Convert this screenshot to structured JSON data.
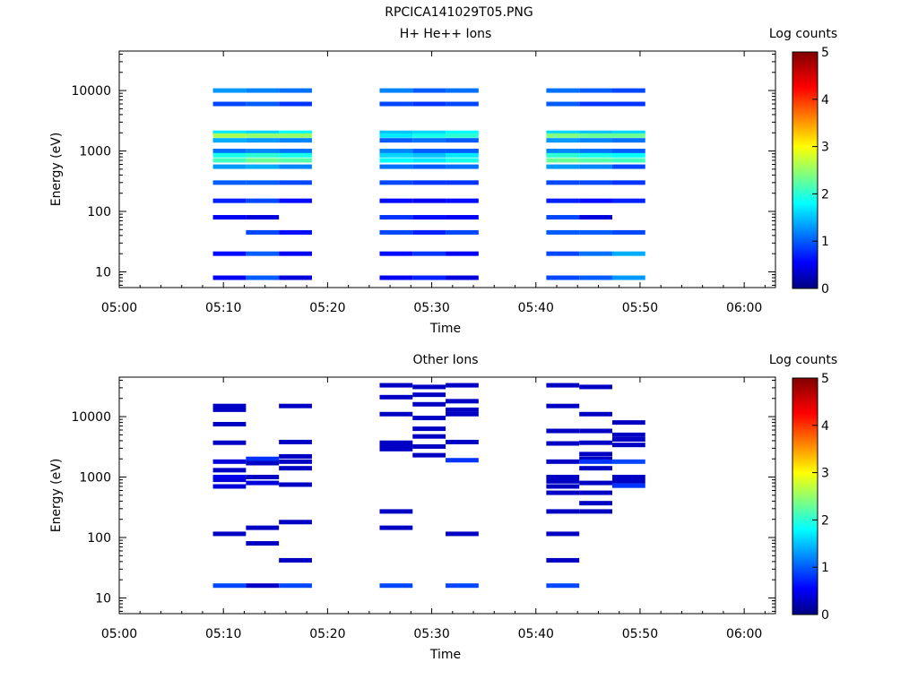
{
  "title": "RPCICA141029T05.PNG",
  "colors": {
    "colormap": [
      "#000080",
      "#0000ff",
      "#00ffff",
      "#ffff00",
      "#ff0000",
      "#800000"
    ]
  },
  "chart_data": [
    {
      "type": "heatmap",
      "title": "H+ He++ Ions",
      "xlabel": "Time",
      "ylabel": "Energy (eV)",
      "y_scale": "log",
      "ylim": [
        5.5,
        45000
      ],
      "x_range": [
        "05:00",
        "06:03"
      ],
      "x_ticks": [
        "05:00",
        "05:10",
        "05:20",
        "05:30",
        "05:40",
        "05:50",
        "06:00"
      ],
      "y_ticks": [
        "10",
        "100",
        "1000",
        "10000"
      ],
      "colorbar": {
        "label": "Log counts",
        "range": [
          0,
          5
        ],
        "ticks": [
          "0",
          "1",
          "2",
          "3",
          "4",
          "5"
        ]
      },
      "columns": [
        {
          "start": "05:09:00",
          "end": "05:12:10",
          "cells": [
            [
              10000,
              1.3
            ],
            [
              6000,
              0.9
            ],
            [
              2000,
              1.7
            ],
            [
              1800,
              2.6
            ],
            [
              1500,
              1.4
            ],
            [
              1000,
              1.1
            ],
            [
              850,
              1.9
            ],
            [
              700,
              2.1
            ],
            [
              550,
              1.3
            ],
            [
              300,
              1.0
            ],
            [
              150,
              0.7
            ],
            [
              80,
              0.5
            ],
            [
              45,
              null
            ],
            [
              20,
              0.6
            ],
            [
              8,
              0.5
            ]
          ]
        },
        {
          "start": "05:12:10",
          "end": "05:15:20",
          "cells": [
            [
              10000,
              1.2
            ],
            [
              6000,
              1.0
            ],
            [
              2000,
              1.6
            ],
            [
              1800,
              2.5
            ],
            [
              1500,
              1.3
            ],
            [
              1000,
              1.2
            ],
            [
              850,
              2.0
            ],
            [
              700,
              2.3
            ],
            [
              550,
              1.4
            ],
            [
              300,
              1.0
            ],
            [
              150,
              0.9
            ],
            [
              80,
              0.4
            ],
            [
              45,
              0.9
            ],
            [
              20,
              1.0
            ],
            [
              8,
              1.0
            ]
          ]
        },
        {
          "start": "05:15:20",
          "end": "05:18:30",
          "cells": [
            [
              10000,
              1.1
            ],
            [
              6000,
              0.8
            ],
            [
              2000,
              1.8
            ],
            [
              1800,
              2.5
            ],
            [
              1500,
              1.2
            ],
            [
              1000,
              1.1
            ],
            [
              850,
              1.9
            ],
            [
              700,
              2.2
            ],
            [
              550,
              1.2
            ],
            [
              300,
              0.9
            ],
            [
              150,
              0.6
            ],
            [
              80,
              null
            ],
            [
              45,
              0.6
            ],
            [
              20,
              0.5
            ],
            [
              8,
              0.4
            ]
          ]
        },
        {
          "start": "05:25:00",
          "end": "05:28:10",
          "cells": [
            [
              10000,
              1.2
            ],
            [
              6000,
              0.9
            ],
            [
              2000,
              1.5
            ],
            [
              1800,
              1.7
            ],
            [
              1500,
              1.0
            ],
            [
              1000,
              1.2
            ],
            [
              850,
              1.6
            ],
            [
              700,
              1.8
            ],
            [
              550,
              1.1
            ],
            [
              300,
              0.9
            ],
            [
              150,
              0.6
            ],
            [
              80,
              0.8
            ],
            [
              45,
              0.9
            ],
            [
              20,
              0.6
            ],
            [
              8,
              0.5
            ]
          ]
        },
        {
          "start": "05:28:10",
          "end": "05:31:20",
          "cells": [
            [
              10000,
              1.0
            ],
            [
              6000,
              0.8
            ],
            [
              2000,
              1.6
            ],
            [
              1800,
              1.9
            ],
            [
              1500,
              1.1
            ],
            [
              1000,
              1.0
            ],
            [
              850,
              1.5
            ],
            [
              700,
              1.7
            ],
            [
              550,
              1.0
            ],
            [
              300,
              0.8
            ],
            [
              150,
              0.5
            ],
            [
              80,
              0.6
            ],
            [
              45,
              0.7
            ],
            [
              20,
              0.8
            ],
            [
              8,
              0.7
            ]
          ]
        },
        {
          "start": "05:31:20",
          "end": "05:34:30",
          "cells": [
            [
              10000,
              1.1
            ],
            [
              6000,
              0.9
            ],
            [
              2000,
              1.8
            ],
            [
              1800,
              2.0
            ],
            [
              1500,
              1.0
            ],
            [
              1000,
              1.0
            ],
            [
              850,
              1.7
            ],
            [
              700,
              1.9
            ],
            [
              550,
              1.1
            ],
            [
              300,
              0.8
            ],
            [
              150,
              0.6
            ],
            [
              80,
              0.5
            ],
            [
              45,
              0.9
            ],
            [
              20,
              0.5
            ],
            [
              8,
              0.4
            ]
          ]
        },
        {
          "start": "05:41:00",
          "end": "05:44:10",
          "cells": [
            [
              10000,
              1.1
            ],
            [
              6000,
              1.0
            ],
            [
              2000,
              1.6
            ],
            [
              1800,
              2.4
            ],
            [
              1500,
              1.3
            ],
            [
              1000,
              1.2
            ],
            [
              850,
              2.0
            ],
            [
              700,
              2.3
            ],
            [
              550,
              1.3
            ],
            [
              300,
              0.9
            ],
            [
              150,
              0.7
            ],
            [
              80,
              0.9
            ],
            [
              45,
              1.0
            ],
            [
              20,
              0.9
            ],
            [
              8,
              0.9
            ]
          ]
        },
        {
          "start": "05:44:10",
          "end": "05:47:20",
          "cells": [
            [
              10000,
              1.0
            ],
            [
              6000,
              0.8
            ],
            [
              2000,
              1.5
            ],
            [
              1800,
              2.3
            ],
            [
              1500,
              1.2
            ],
            [
              1000,
              1.1
            ],
            [
              850,
              1.9
            ],
            [
              700,
              2.2
            ],
            [
              550,
              1.2
            ],
            [
              300,
              0.9
            ],
            [
              150,
              0.6
            ],
            [
              80,
              0.4
            ],
            [
              45,
              1.0
            ],
            [
              20,
              1.1
            ],
            [
              8,
              1.0
            ]
          ]
        },
        {
          "start": "05:47:20",
          "end": "05:50:30",
          "cells": [
            [
              10000,
              0.9
            ],
            [
              6000,
              0.8
            ],
            [
              2000,
              1.6
            ],
            [
              1800,
              2.3
            ],
            [
              1500,
              1.1
            ],
            [
              1000,
              1.0
            ],
            [
              850,
              1.8
            ],
            [
              700,
              2.1
            ],
            [
              550,
              0.9
            ],
            [
              300,
              0.8
            ],
            [
              150,
              0.7
            ],
            [
              80,
              null
            ],
            [
              45,
              0.9
            ],
            [
              20,
              1.4
            ],
            [
              8,
              1.3
            ]
          ]
        }
      ]
    },
    {
      "type": "heatmap",
      "title": "Other Ions",
      "xlabel": "Time",
      "ylabel": "Energy (eV)",
      "y_scale": "log",
      "ylim": [
        5.5,
        45000
      ],
      "x_range": [
        "05:00",
        "06:03"
      ],
      "x_ticks": [
        "05:00",
        "05:10",
        "05:20",
        "05:30",
        "05:40",
        "05:50",
        "06:00"
      ],
      "y_ticks": [
        "10",
        "100",
        "1000",
        "10000"
      ],
      "colorbar": {
        "label": "Log counts",
        "range": [
          0,
          5
        ],
        "ticks": [
          "0",
          "1",
          "2",
          "3",
          "4",
          "5"
        ]
      },
      "columns": [
        {
          "start": "05:09:00",
          "end": "05:12:10",
          "cells": [
            [
              15000,
              0.3
            ],
            [
              13000,
              0.3
            ],
            [
              7500,
              0.3
            ],
            [
              3700,
              0.3
            ],
            [
              1800,
              0.4
            ],
            [
              1300,
              0.3
            ],
            [
              1000,
              0.5
            ],
            [
              900,
              0.4
            ],
            [
              700,
              0.4
            ],
            [
              115,
              0.3
            ],
            [
              16,
              0.9
            ]
          ]
        },
        {
          "start": "05:12:10",
          "end": "05:15:20",
          "cells": [
            [
              2000,
              0.8
            ],
            [
              1700,
              0.3
            ],
            [
              1000,
              0.3
            ],
            [
              800,
              0.4
            ],
            [
              145,
              0.3
            ],
            [
              80,
              0.3
            ],
            [
              16,
              0.3
            ]
          ]
        },
        {
          "start": "05:15:20",
          "end": "05:18:30",
          "cells": [
            [
              15000,
              0.3
            ],
            [
              3800,
              0.3
            ],
            [
              2200,
              0.3
            ],
            [
              1800,
              0.3
            ],
            [
              1400,
              0.3
            ],
            [
              750,
              0.3
            ],
            [
              180,
              0.3
            ],
            [
              42,
              0.3
            ],
            [
              16,
              0.9
            ]
          ]
        },
        {
          "start": "05:25:00",
          "end": "05:28:10",
          "cells": [
            [
              33000,
              0.3
            ],
            [
              21000,
              0.3
            ],
            [
              11000,
              0.3
            ],
            [
              3700,
              0.3
            ],
            [
              3300,
              0.3
            ],
            [
              2900,
              0.3
            ],
            [
              270,
              0.3
            ],
            [
              145,
              0.3
            ],
            [
              16,
              0.9
            ]
          ]
        },
        {
          "start": "05:28:10",
          "end": "05:31:20",
          "cells": [
            [
              31000,
              0.3
            ],
            [
              23000,
              0.3
            ],
            [
              16000,
              0.3
            ],
            [
              9500,
              0.3
            ],
            [
              6300,
              0.3
            ],
            [
              4700,
              0.3
            ],
            [
              3200,
              0.3
            ],
            [
              2300,
              0.3
            ]
          ]
        },
        {
          "start": "05:31:20",
          "end": "05:34:30",
          "cells": [
            [
              33000,
              0.3
            ],
            [
              18000,
              0.3
            ],
            [
              13000,
              0.3
            ],
            [
              11000,
              0.3
            ],
            [
              3800,
              0.3
            ],
            [
              1900,
              0.8
            ],
            [
              115,
              0.3
            ],
            [
              16,
              0.9
            ]
          ]
        },
        {
          "start": "05:41:00",
          "end": "05:44:10",
          "cells": [
            [
              33000,
              0.3
            ],
            [
              15000,
              0.3
            ],
            [
              5800,
              0.3
            ],
            [
              3600,
              0.3
            ],
            [
              1800,
              0.3
            ],
            [
              1000,
              0.3
            ],
            [
              850,
              0.3
            ],
            [
              700,
              0.3
            ],
            [
              550,
              0.3
            ],
            [
              270,
              0.3
            ],
            [
              115,
              0.3
            ],
            [
              42,
              0.3
            ],
            [
              16,
              0.9
            ]
          ]
        },
        {
          "start": "05:44:10",
          "end": "05:47:20",
          "cells": [
            [
              31000,
              0.3
            ],
            [
              11000,
              0.3
            ],
            [
              5800,
              0.3
            ],
            [
              3700,
              0.3
            ],
            [
              2400,
              0.3
            ],
            [
              2000,
              0.3
            ],
            [
              1800,
              0.8
            ],
            [
              1400,
              0.3
            ],
            [
              800,
              0.3
            ],
            [
              550,
              0.3
            ],
            [
              370,
              0.3
            ],
            [
              270,
              0.3
            ]
          ]
        },
        {
          "start": "05:47:20",
          "end": "05:50:30",
          "cells": [
            [
              8000,
              0.3
            ],
            [
              5000,
              0.3
            ],
            [
              4200,
              0.3
            ],
            [
              3400,
              0.3
            ],
            [
              1800,
              0.9
            ],
            [
              1000,
              0.3
            ],
            [
              850,
              0.3
            ],
            [
              720,
              0.8
            ]
          ]
        }
      ]
    }
  ]
}
